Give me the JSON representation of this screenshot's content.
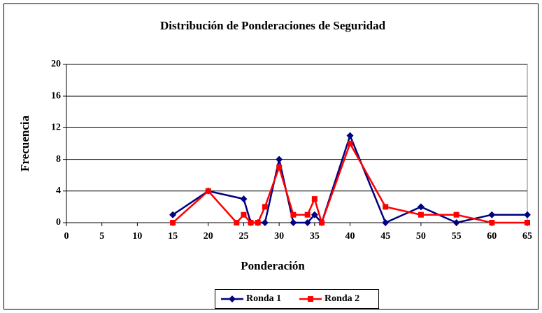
{
  "chart_data": {
    "type": "line",
    "title": "Distribución de Ponderaciones de Seguridad",
    "x_label": "Ponderación",
    "y_label": "Frecuencia",
    "series": [
      {
        "name": "Ronda 1",
        "color": "#000080",
        "marker": "diamond",
        "x": [
          15,
          20,
          25,
          26,
          27,
          28,
          30,
          32,
          34,
          35,
          36,
          40,
          45,
          50,
          55,
          60,
          65
        ],
        "values": [
          1,
          4,
          3,
          0,
          0,
          0,
          8,
          0,
          0,
          1,
          0,
          11,
          0,
          2,
          0,
          1,
          1
        ]
      },
      {
        "name": "Ronda 2",
        "color": "#ff0000",
        "marker": "square",
        "x": [
          15,
          20,
          24,
          25,
          26,
          27,
          28,
          30,
          32,
          34,
          35,
          36,
          40,
          45,
          50,
          55,
          60,
          65
        ],
        "values": [
          0,
          4,
          0,
          1,
          0,
          0,
          2,
          7,
          1,
          1,
          3,
          0,
          10,
          2,
          1,
          1,
          0,
          0
        ]
      }
    ],
    "xlim": [
      0,
      65
    ],
    "xticks": [
      0,
      5,
      10,
      15,
      20,
      25,
      30,
      35,
      40,
      45,
      50,
      55,
      60,
      65
    ],
    "ylim": [
      0,
      20
    ],
    "yticks": [
      0,
      4,
      8,
      12,
      16,
      20
    ],
    "grid": true,
    "legend": "bottom"
  }
}
